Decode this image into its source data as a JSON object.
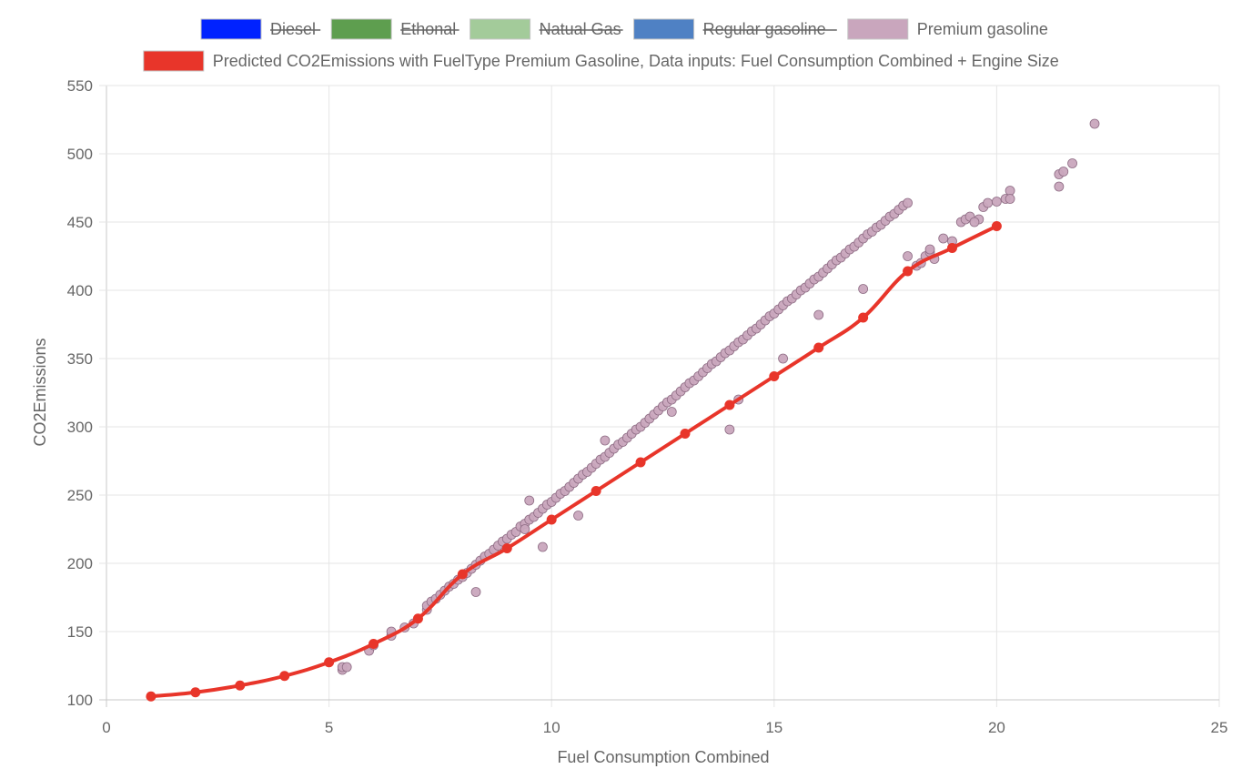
{
  "chart_data": {
    "type": "scatter",
    "xlabel": "Fuel Consumption Combined",
    "ylabel": "CO2Emissions",
    "xlim": [
      0,
      25
    ],
    "ylim": [
      100,
      550
    ],
    "x_ticks": [
      "0",
      "5",
      "10",
      "15",
      "20",
      "25"
    ],
    "y_ticks": [
      "100",
      "150",
      "200",
      "250",
      "300",
      "350",
      "400",
      "450",
      "500",
      "550"
    ],
    "grid": true,
    "legend_position": "top",
    "legend": [
      {
        "label": "Diesel",
        "color": "#0022ff",
        "hidden": true
      },
      {
        "label": "Ethonal",
        "color": "#5e9e4f",
        "hidden": true
      },
      {
        "label": "Natual Gas",
        "color": "#a3cb9a",
        "hidden": true
      },
      {
        "label": "Regular gasoline",
        "color": "#4f81c4",
        "hidden": true
      },
      {
        "label": "Premium gasoline",
        "color": "#c9a6bd",
        "hidden": false
      },
      {
        "label": "Predicted CO2Emissions with FuelType Premium Gasoline, Data inputs: Fuel Consumption Combined + Engine Size",
        "color": "#e8352a",
        "hidden": false
      }
    ],
    "series": [
      {
        "name": "Premium gasoline",
        "type": "scatter",
        "color": "#c9a6bd",
        "x": [
          5.3,
          5.3,
          5.4,
          5.9,
          6.0,
          6.4,
          6.4,
          6.7,
          6.9,
          7.2,
          7.2,
          7.3,
          7.4,
          7.5,
          7.6,
          7.7,
          7.8,
          7.9,
          8.0,
          8.1,
          8.2,
          8.3,
          8.4,
          8.5,
          8.6,
          8.7,
          8.8,
          8.9,
          9.0,
          9.1,
          9.2,
          9.3,
          9.4,
          9.4,
          9.5,
          9.6,
          9.7,
          9.8,
          9.9,
          10.0,
          10.1,
          10.2,
          10.3,
          10.4,
          10.5,
          10.6,
          10.7,
          10.8,
          10.9,
          11.0,
          11.1,
          11.2,
          11.3,
          11.4,
          11.5,
          11.6,
          11.7,
          11.8,
          11.9,
          12.0,
          12.1,
          12.2,
          12.3,
          12.4,
          12.5,
          12.6,
          12.7,
          12.8,
          12.9,
          13.0,
          13.1,
          13.2,
          13.3,
          13.4,
          13.5,
          13.6,
          13.7,
          13.8,
          13.9,
          14.0,
          14.1,
          14.2,
          14.3,
          14.4,
          14.5,
          14.6,
          14.7,
          14.8,
          14.9,
          15.0,
          15.1,
          15.2,
          15.3,
          15.4,
          15.5,
          15.6,
          15.7,
          15.8,
          15.9,
          16.0,
          16.1,
          16.2,
          16.3,
          16.4,
          16.5,
          16.6,
          16.7,
          16.8,
          16.9,
          17.0,
          17.1,
          17.2,
          17.3,
          17.4,
          17.5,
          17.6,
          17.7,
          17.8,
          17.9,
          18.0,
          18.2,
          18.3,
          18.4,
          18.5,
          18.6,
          18.8,
          19.0,
          19.2,
          19.3,
          19.4,
          19.6,
          19.7,
          19.8,
          20.0,
          20.2,
          20.3,
          20.3,
          21.4,
          21.4,
          21.5,
          21.7,
          22.2,
          9.5,
          9.8,
          10.6,
          8.3,
          11.2,
          12.7,
          14.0,
          14.2,
          15.2,
          16.0,
          17.0,
          18.0,
          18.5,
          19.5
        ],
        "y": [
          122,
          124,
          124,
          136,
          140,
          147,
          150,
          153,
          156,
          166,
          169,
          172,
          174,
          177,
          180,
          183,
          185,
          188,
          190,
          193,
          196,
          199,
          202,
          205,
          207,
          210,
          213,
          216,
          218,
          221,
          223,
          227,
          229,
          225,
          232,
          234,
          237,
          240,
          243,
          245,
          248,
          251,
          253,
          256,
          259,
          262,
          265,
          267,
          270,
          273,
          276,
          278,
          281,
          284,
          287,
          289,
          292,
          295,
          298,
          300,
          303,
          306,
          309,
          312,
          315,
          318,
          320,
          323,
          326,
          329,
          332,
          334,
          337,
          340,
          343,
          346,
          348,
          351,
          354,
          356,
          359,
          362,
          364,
          367,
          370,
          372,
          375,
          378,
          381,
          383,
          386,
          389,
          392,
          394,
          397,
          400,
          402,
          405,
          408,
          410,
          413,
          416,
          419,
          422,
          424,
          427,
          430,
          432,
          435,
          438,
          441,
          443,
          446,
          448,
          451,
          454,
          456,
          459,
          462,
          464,
          418,
          420,
          425,
          428,
          423,
          438,
          436,
          450,
          452,
          454,
          452,
          461,
          464,
          465,
          467,
          473,
          467,
          476,
          485,
          487,
          493,
          522,
          246,
          212,
          235,
          179,
          290,
          311,
          298,
          320,
          350,
          382,
          401,
          425,
          430,
          450
        ]
      },
      {
        "name": "Predicted CO2Emissions with FuelType Premium Gasoline, Data inputs: Fuel Consumption Combined + Engine Size",
        "type": "line",
        "color": "#e8352a",
        "x": [
          1,
          2,
          3,
          4,
          5,
          6,
          7,
          8,
          9,
          10,
          11,
          12,
          13,
          14,
          15,
          16,
          17,
          18,
          19,
          20
        ],
        "y": [
          102.5,
          105.5,
          110.5,
          117.5,
          127.5,
          141.0,
          159.5,
          192,
          211,
          232,
          253,
          274,
          295,
          316,
          337,
          358,
          380,
          414,
          431,
          447
        ]
      }
    ]
  }
}
